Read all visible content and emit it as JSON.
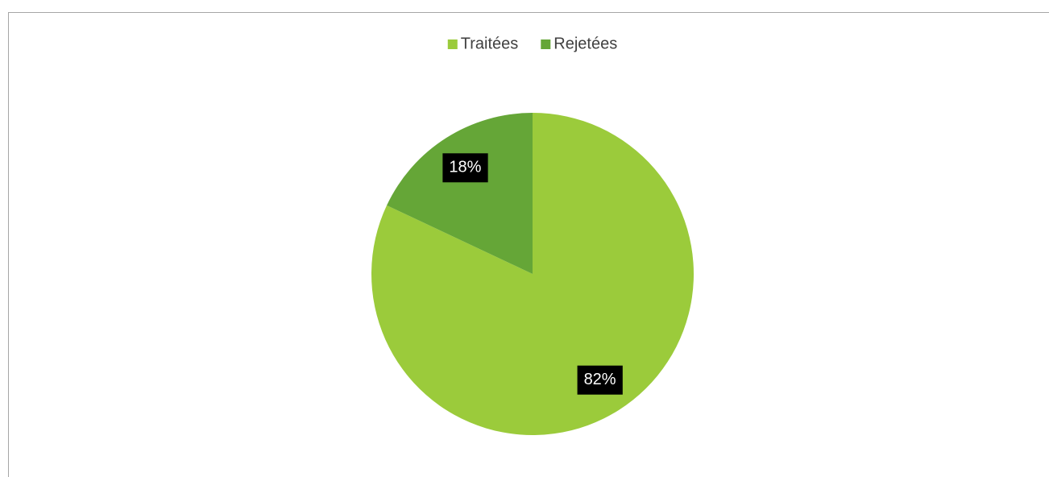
{
  "chart_data": {
    "type": "pie",
    "categories": [
      "Traitées",
      "Rejetées"
    ],
    "values": [
      82,
      18
    ],
    "value_labels": [
      "82%",
      "18%"
    ],
    "colors": [
      "#9bcb3b",
      "#65a637"
    ],
    "legend": "top"
  }
}
